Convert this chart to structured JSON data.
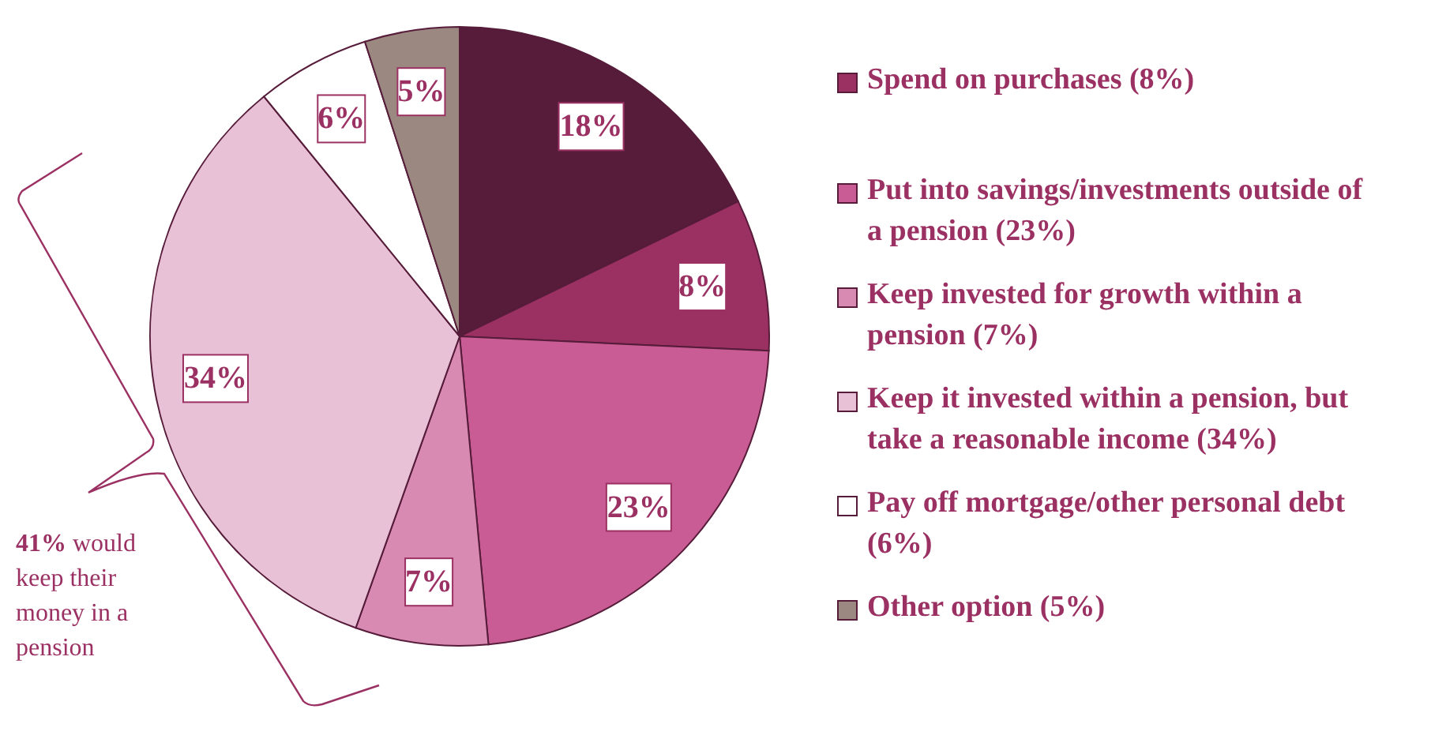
{
  "chart_data": {
    "type": "pie",
    "categories": [
      null,
      "Spend on purchases (8%)",
      "Put into savings/investments outside of a pension (23%)",
      "Keep invested for growth within a pension (7%)",
      "Keep it invested within a pension, but take a reasonable income (34%)",
      "Pay off mortgage/other personal debt (6%)",
      "Other option (5%)"
    ],
    "values": [
      18,
      8,
      23,
      7,
      34,
      6,
      5
    ],
    "colors": [
      "#561c3a",
      "#9b3163",
      "#c95c94",
      "#d98ab3",
      "#e9c1d6",
      "#ffffff",
      "#9b8880"
    ],
    "value_labels": [
      "18%",
      "8%",
      "23%",
      "7%",
      "34%",
      "6%",
      "5%"
    ],
    "legend": "right",
    "annotations": [
      "41% would keep their money in a pension"
    ]
  }
}
